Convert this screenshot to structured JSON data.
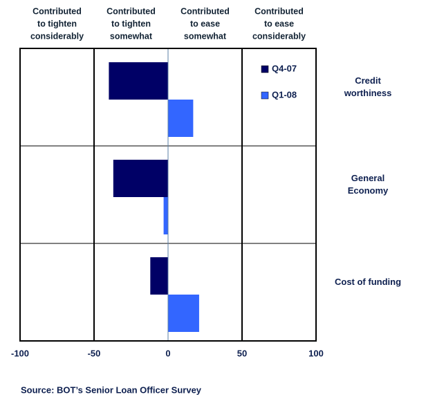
{
  "chart_data": {
    "type": "hbar",
    "column_headers": [
      [
        "Contributed",
        "to tighten",
        "considerably"
      ],
      [
        "Contributed",
        "to tighten",
        "somewhat"
      ],
      [
        "Contributed",
        "to ease",
        "somewhat"
      ],
      [
        "Contributed",
        "to ease",
        "considerably"
      ]
    ],
    "categories": [
      [
        "Credit",
        "worthiness"
      ],
      [
        "General",
        "Economy"
      ],
      [
        "Cost of funding"
      ]
    ],
    "series": [
      {
        "name": "Q4-07",
        "color": "#000066",
        "values": [
          -40,
          -37,
          -12
        ]
      },
      {
        "name": "Q1-08",
        "color": "#3366ff",
        "values": [
          17,
          -3,
          21
        ]
      }
    ],
    "xlim": [
      -100,
      100
    ],
    "xticks": [
      -100,
      -50,
      0,
      50,
      100
    ],
    "source": "Source: BOT’s Senior Loan Officer Survey"
  }
}
